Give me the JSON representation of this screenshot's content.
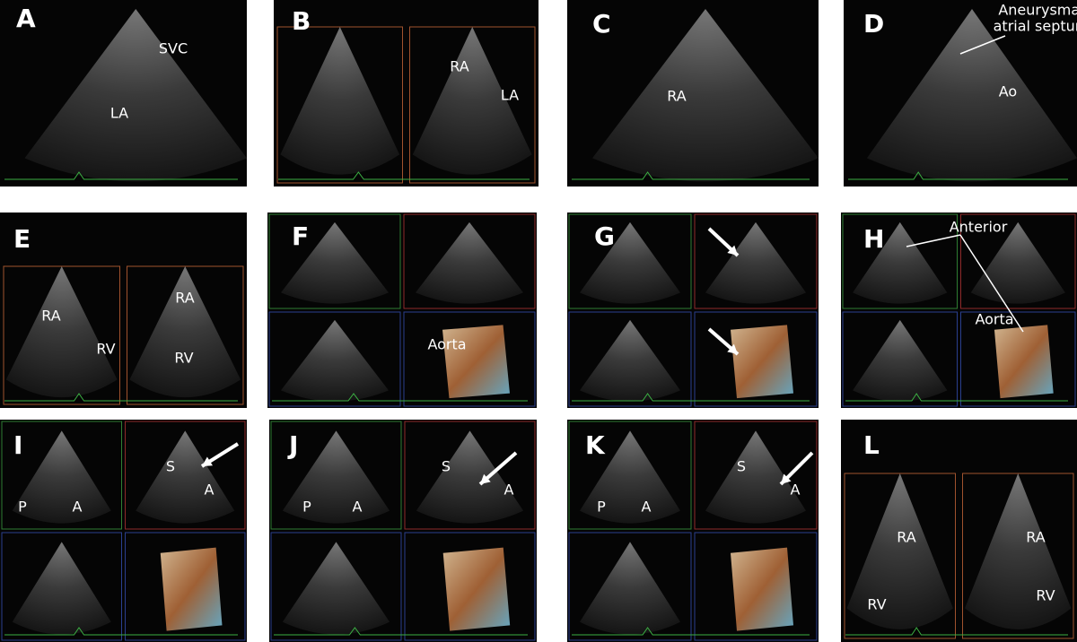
{
  "panels": [
    {
      "letter": "A",
      "labels": [
        "SVC",
        "LA"
      ]
    },
    {
      "letter": "B",
      "labels": [
        "RA",
        "LA"
      ]
    },
    {
      "letter": "C",
      "labels": [
        "RA"
      ]
    },
    {
      "letter": "D",
      "labels": [
        "Aneurysmal",
        "atrial septum",
        "Ao"
      ]
    },
    {
      "letter": "E",
      "labels": [
        "RA",
        "RV",
        "RA",
        "RV"
      ]
    },
    {
      "letter": "F",
      "labels": [
        "Aorta"
      ]
    },
    {
      "letter": "G",
      "labels": []
    },
    {
      "letter": "H",
      "labels": [
        "Anterior",
        "Aorta"
      ]
    },
    {
      "letter": "I",
      "labels": [
        "P",
        "A",
        "S",
        "A"
      ]
    },
    {
      "letter": "J",
      "labels": [
        "P",
        "A",
        "S",
        "A"
      ]
    },
    {
      "letter": "K",
      "labels": [
        "P",
        "A",
        "S",
        "A"
      ]
    },
    {
      "letter": "L",
      "labels": [
        "RA",
        "RV",
        "RA",
        "RV"
      ]
    }
  ]
}
